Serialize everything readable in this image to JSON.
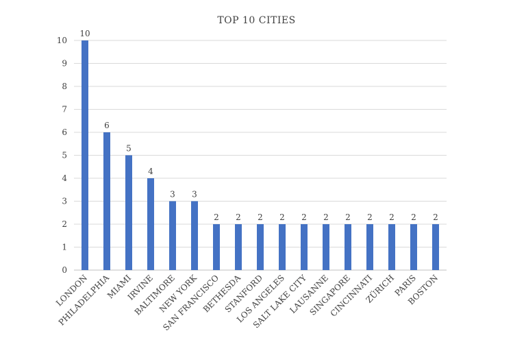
{
  "chart_data": {
    "type": "bar",
    "title": "TOP 10 CITIES",
    "xlabel": "",
    "ylabel": "",
    "ylim": [
      0,
      10
    ],
    "yticks": [
      0,
      1,
      2,
      3,
      4,
      5,
      6,
      7,
      8,
      9,
      10
    ],
    "grid": true,
    "legend": "none",
    "bar_color": "#4472C4",
    "categories": [
      "LONDON",
      "PHILADELPHIA",
      "MIAMI",
      "IRVINE",
      "BALTIMORE",
      "NEW YORK",
      "SAN FRANCISCO",
      "BETHESDA",
      "STANFORD",
      "LOS ANGELES",
      "SALT LAKE CITY",
      "LAUSANNE",
      "SINGAPORE",
      "CINCINNATI",
      "ZÜRICH",
      "PARIS",
      "BOSTON"
    ],
    "values": [
      10,
      6,
      5,
      4,
      3,
      3,
      2,
      2,
      2,
      2,
      2,
      2,
      2,
      2,
      2,
      2,
      2
    ]
  }
}
